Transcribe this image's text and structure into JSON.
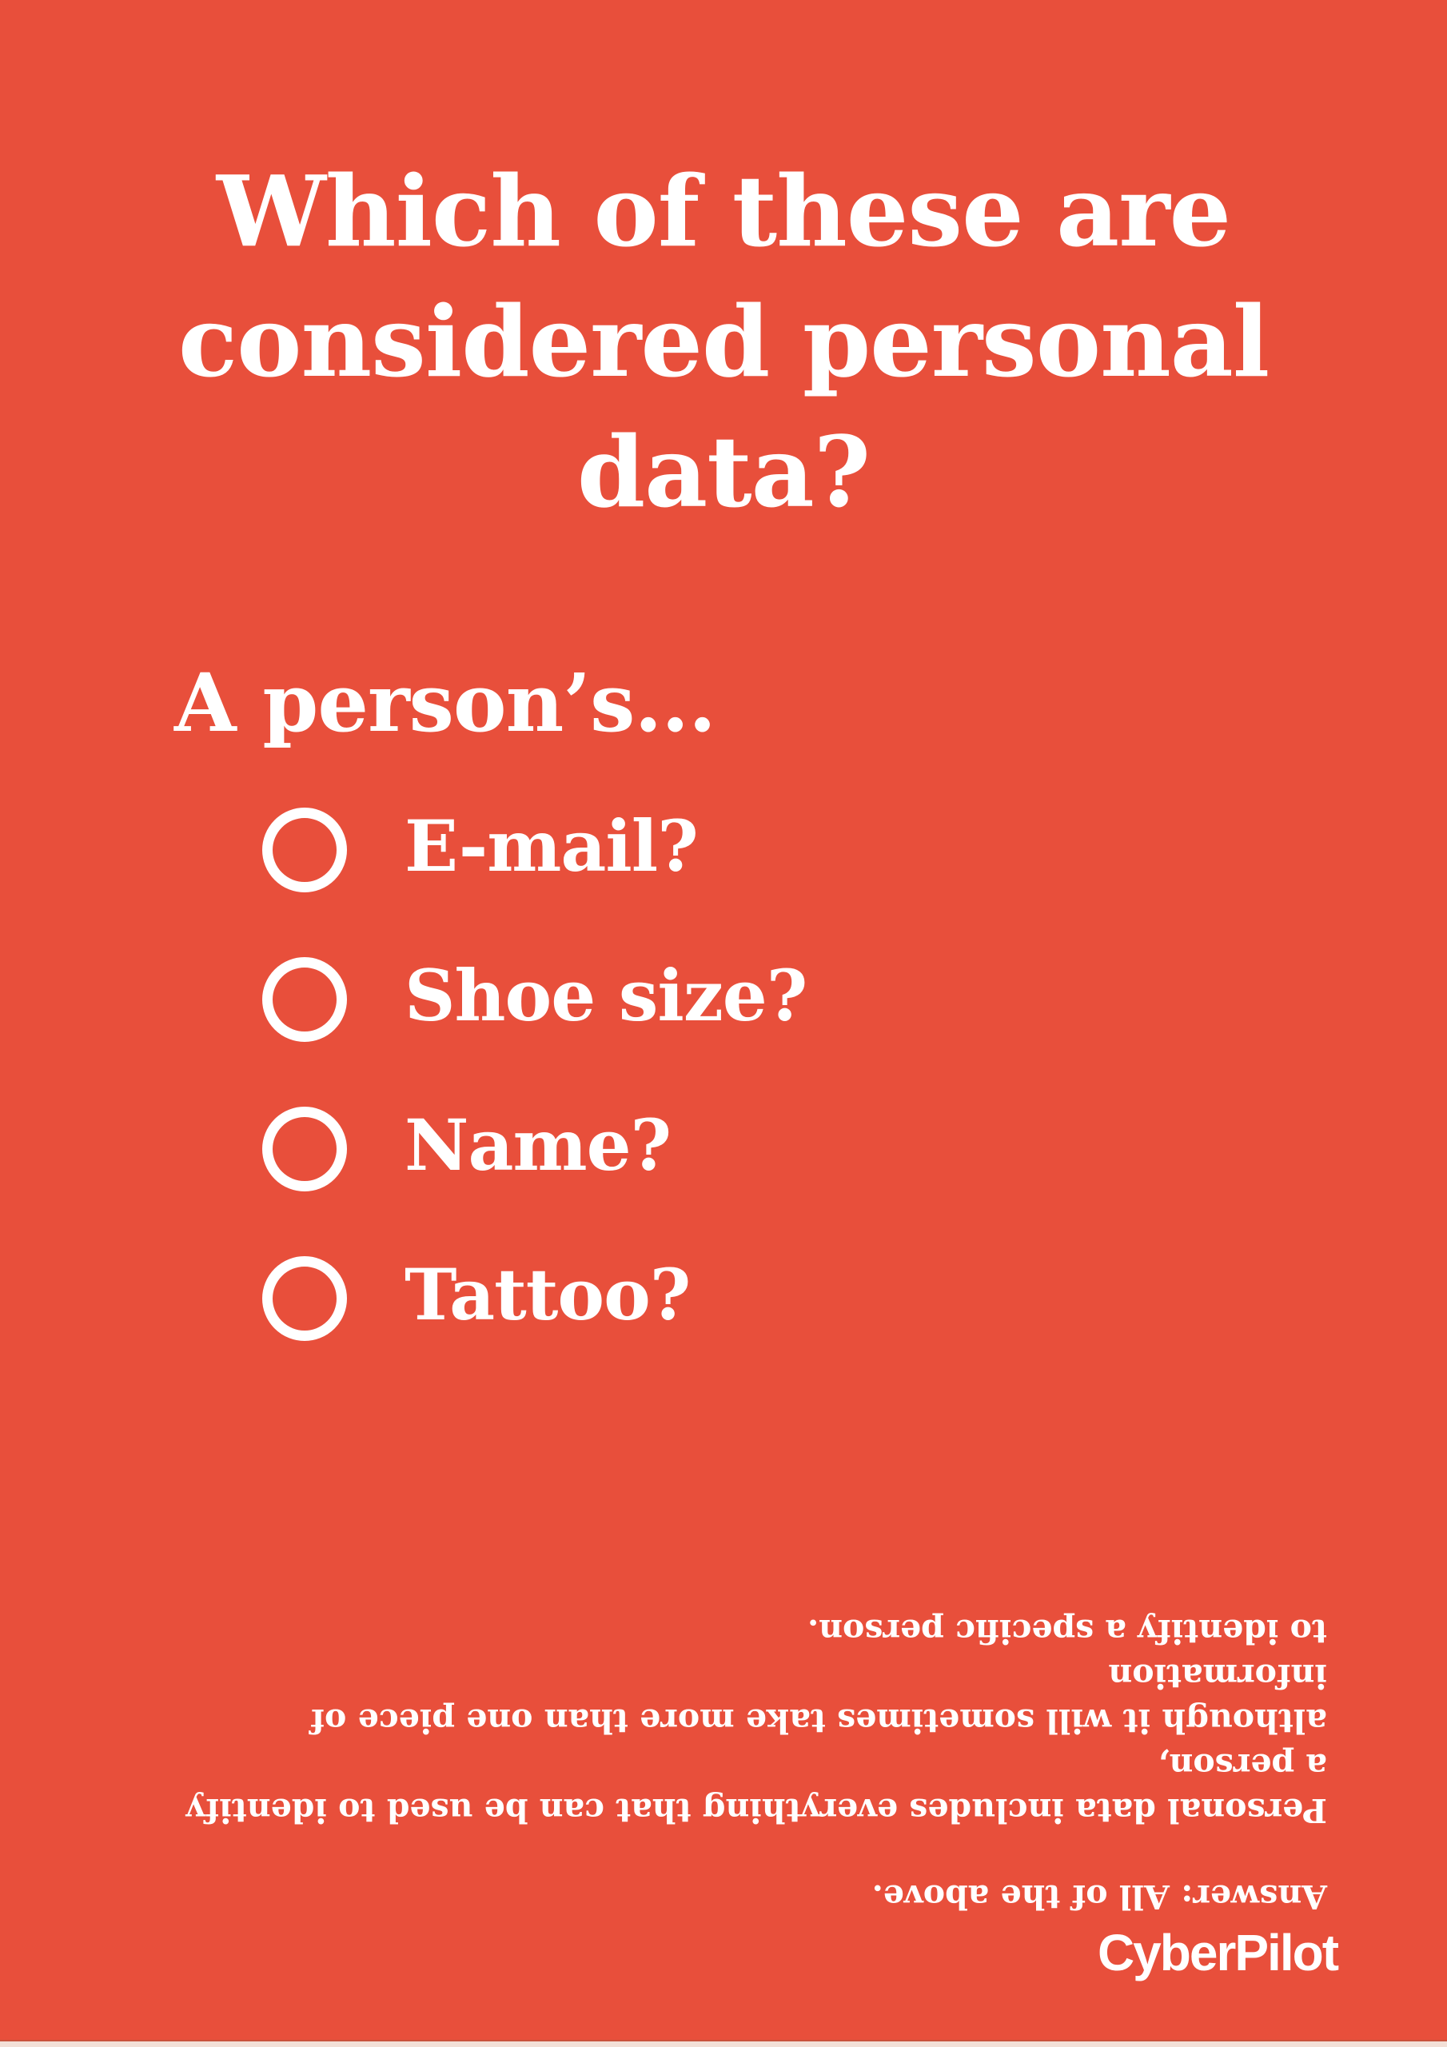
{
  "poster": {
    "title_lines": [
      "Which of these are",
      "considered personal",
      "data?"
    ],
    "prompt": "A person’s...",
    "options": [
      {
        "label": "E-mail?"
      },
      {
        "label": "Shoe size?"
      },
      {
        "label": "Name?"
      },
      {
        "label": "Tattoo?"
      }
    ],
    "answer": {
      "heading": "Answer: All of the above.",
      "explanation_lines": [
        "Personal data includes everything that can be used to identify a person,",
        "although it will sometimes take more than one piece of information",
        "to identify a specific person."
      ],
      "note": "printed upside down"
    },
    "brand": "CyberPilot",
    "colors": {
      "background": "#E84F3B",
      "text": "#FFFFFF",
      "footer_strip": "#F2E0D7"
    }
  }
}
